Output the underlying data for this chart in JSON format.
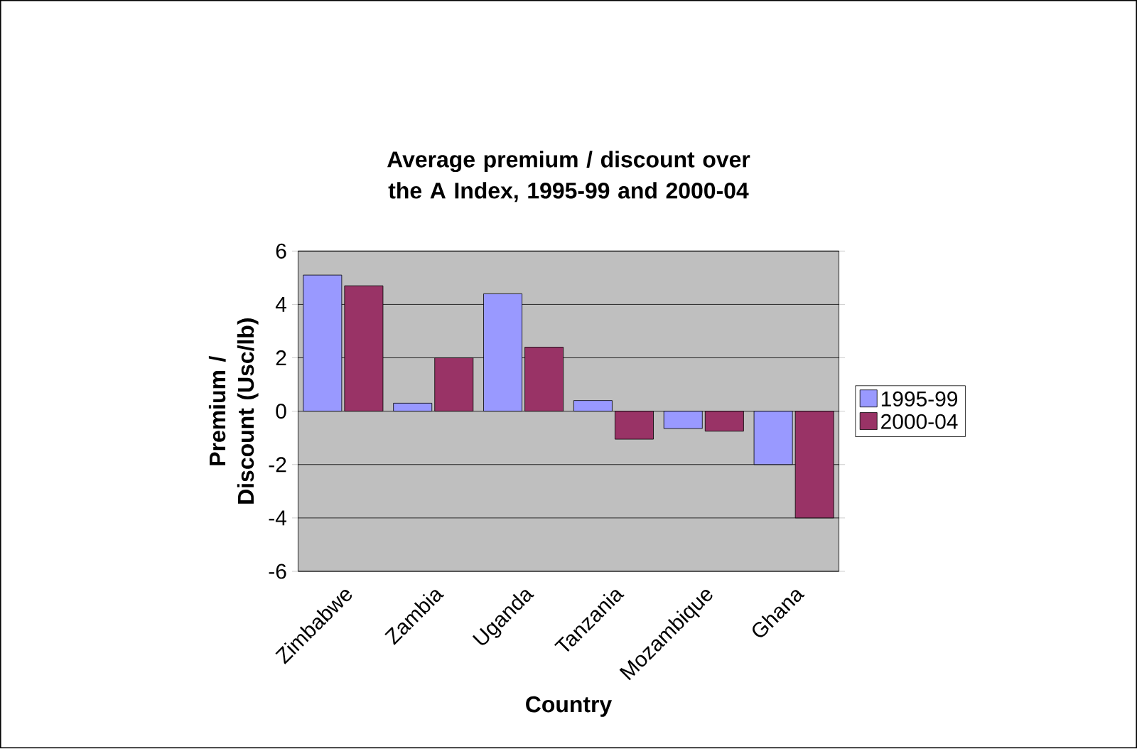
{
  "chart_data": {
    "type": "bar",
    "title": "Average premium / discount over the A Index, 1995-99 and 2000-04",
    "xlabel": "Country",
    "ylabel": "Premium / Discount (Usc/lb)",
    "categories": [
      "Zimbabwe",
      "Zambia",
      "Uganda",
      "Tanzania",
      "Mozambique",
      "Ghana"
    ],
    "series": [
      {
        "name": "1995-99",
        "color": "#9999ff",
        "values": [
          5.1,
          0.3,
          4.4,
          0.4,
          -0.65,
          -2.0
        ]
      },
      {
        "name": "2000-04",
        "color": "#993366",
        "values": [
          4.7,
          2.0,
          2.4,
          -1.05,
          -0.75,
          -4.0
        ]
      }
    ],
    "ylim": [
      -6,
      6
    ],
    "yticks": [
      -6,
      -4,
      -2,
      0,
      2,
      4,
      6
    ],
    "grid": "y",
    "legend": "right"
  }
}
